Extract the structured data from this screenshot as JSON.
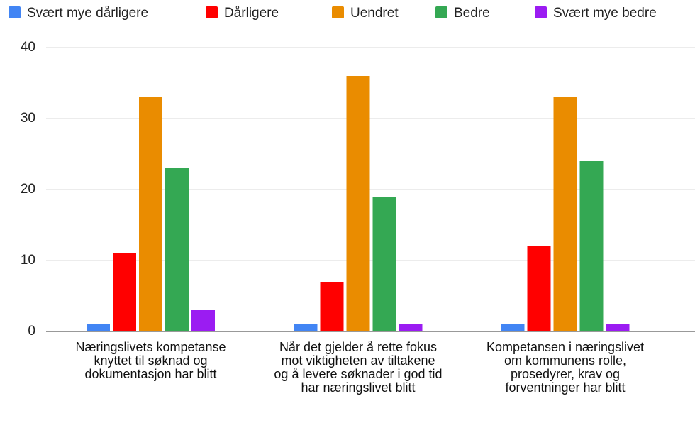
{
  "chart_data": {
    "type": "bar",
    "categories": [
      "Næringslivets kompetanse knyttet til søknad og dokumentasjon har blitt",
      "Når det gjelder å rette fokus mot viktigheten av tiltakene og å levere søknader i god tid har næringslivet blitt",
      "Kompetansen i næringslivet om kommunens rolle, prosedyrer, krav og forventninger har blitt"
    ],
    "series": [
      {
        "name": "Svært mye dårligere",
        "color": "#4285f4",
        "values": [
          1,
          1,
          1
        ]
      },
      {
        "name": "Dårligere",
        "color": "#ff0000",
        "values": [
          11,
          7,
          12
        ]
      },
      {
        "name": "Uendret",
        "color": "#ea8c00",
        "values": [
          33,
          36,
          33
        ]
      },
      {
        "name": "Bedre",
        "color": "#34a853",
        "values": [
          23,
          19,
          24
        ]
      },
      {
        "name": "Svært mye bedre",
        "color": "#9b1cf2",
        "values": [
          3,
          1,
          1
        ]
      }
    ],
    "ylim": [
      0,
      40
    ],
    "yticks": [
      0,
      10,
      20,
      30,
      40
    ],
    "grid": true,
    "legend": "top"
  }
}
